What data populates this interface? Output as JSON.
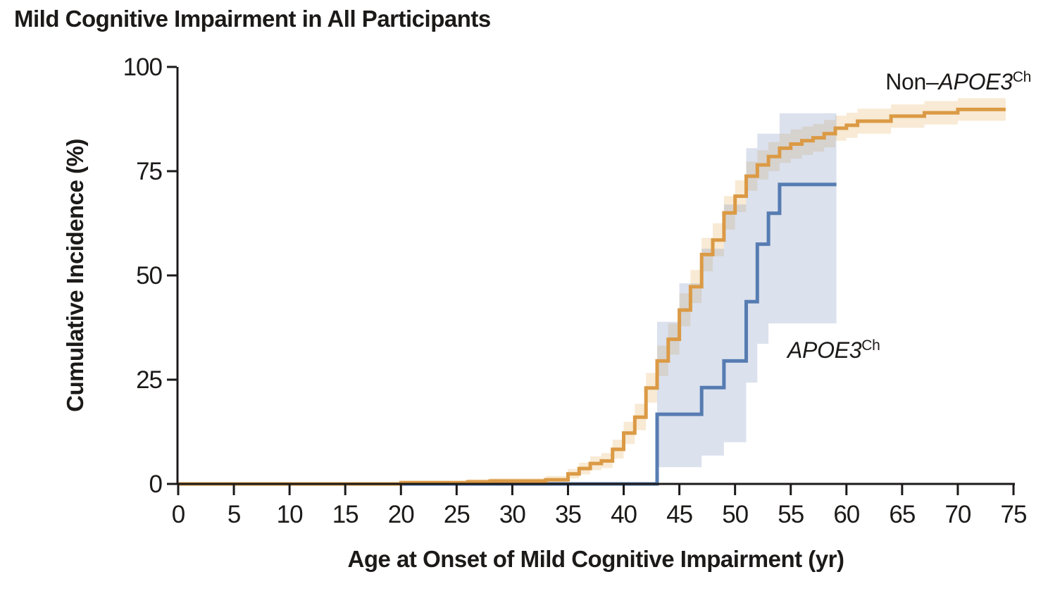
{
  "chart_data": {
    "type": "line",
    "variant": "cumulative-incidence-step-curves-with-confidence-bands",
    "title": "Mild Cognitive Impairment in All Participants",
    "xlabel": "Age at Onset of Mild Cognitive Impairment (yr)",
    "ylabel": "Cumulative Incidence (%)",
    "xlim": [
      0,
      75
    ],
    "ylim": [
      0,
      100
    ],
    "x_ticks": [
      0,
      5,
      10,
      15,
      20,
      25,
      30,
      35,
      40,
      45,
      50,
      55,
      60,
      65,
      70,
      75
    ],
    "y_ticks": [
      0,
      25,
      50,
      75,
      100
    ],
    "grid": false,
    "legend_position": "inline-annotations",
    "axis_color": "#1c1a19",
    "series": [
      {
        "key": "non-apoe3ch",
        "name": "Non–APOE3Ch",
        "label_parts": {
          "prefix": "Non–",
          "gene": "APOE3",
          "sup": "Ch"
        },
        "color": "#DB9A45",
        "band_color": "rgba(228,172,88,0.26)",
        "end_x": 74.3,
        "steps": [
          [
            0,
            0
          ],
          [
            20,
            0.3
          ],
          [
            26,
            0.5
          ],
          [
            28,
            0.7
          ],
          [
            33,
            1
          ],
          [
            35,
            2.4
          ],
          [
            36,
            3.7
          ],
          [
            37,
            4.9
          ],
          [
            38,
            5.5
          ],
          [
            39,
            8.3
          ],
          [
            40,
            12.2
          ],
          [
            41,
            16
          ],
          [
            42,
            23
          ],
          [
            43,
            29.5
          ],
          [
            44,
            34.7
          ],
          [
            45,
            41.7
          ],
          [
            46,
            47.3
          ],
          [
            47,
            55
          ],
          [
            48,
            58.5
          ],
          [
            49,
            65
          ],
          [
            50,
            69
          ],
          [
            51,
            73.8
          ],
          [
            52,
            76.5
          ],
          [
            53,
            78.5
          ],
          [
            54,
            80.5
          ],
          [
            55,
            81.5
          ],
          [
            56,
            82.3
          ],
          [
            57,
            83
          ],
          [
            58,
            84
          ],
          [
            59,
            85.3
          ],
          [
            60,
            86
          ],
          [
            61,
            87
          ],
          [
            64,
            88.2
          ],
          [
            67,
            89
          ],
          [
            70,
            89.8
          ]
        ],
        "band_upper": [
          [
            0,
            0
          ],
          [
            20,
            0.8
          ],
          [
            26,
            1.1
          ],
          [
            28,
            1.4
          ],
          [
            33,
            1.9
          ],
          [
            35,
            3.6
          ],
          [
            36,
            5.1
          ],
          [
            37,
            6.6
          ],
          [
            38,
            7.4
          ],
          [
            39,
            10.6
          ],
          [
            40,
            14.9
          ],
          [
            41,
            19.2
          ],
          [
            42,
            26.6
          ],
          [
            43,
            33.2
          ],
          [
            44,
            38.5
          ],
          [
            45,
            45.7
          ],
          [
            46,
            51.3
          ],
          [
            47,
            59
          ],
          [
            48,
            62.5
          ],
          [
            49,
            69
          ],
          [
            50,
            72.8
          ],
          [
            51,
            77.3
          ],
          [
            52,
            80
          ],
          [
            53,
            82
          ],
          [
            54,
            84
          ],
          [
            55,
            85
          ],
          [
            56,
            85.7
          ],
          [
            57,
            86.3
          ],
          [
            58,
            87.3
          ],
          [
            59,
            88.3
          ],
          [
            60,
            89
          ],
          [
            61,
            90
          ],
          [
            64,
            91
          ],
          [
            67,
            91.8
          ],
          [
            70,
            92.5
          ]
        ],
        "band_lower": [
          [
            0,
            0
          ],
          [
            20,
            0
          ],
          [
            26,
            0.1
          ],
          [
            28,
            0.2
          ],
          [
            33,
            0.4
          ],
          [
            35,
            1.3
          ],
          [
            36,
            2.3
          ],
          [
            37,
            3.3
          ],
          [
            38,
            3.8
          ],
          [
            39,
            6.1
          ],
          [
            40,
            9.6
          ],
          [
            41,
            12.9
          ],
          [
            42,
            19.5
          ],
          [
            43,
            25.9
          ],
          [
            44,
            31
          ],
          [
            45,
            37.8
          ],
          [
            46,
            43.4
          ],
          [
            47,
            51
          ],
          [
            48,
            54.6
          ],
          [
            49,
            61
          ],
          [
            50,
            65.2
          ],
          [
            51,
            70.3
          ],
          [
            52,
            73
          ],
          [
            53,
            75
          ],
          [
            54,
            77
          ],
          [
            55,
            78
          ],
          [
            56,
            78.9
          ],
          [
            57,
            79.7
          ],
          [
            58,
            80.7
          ],
          [
            59,
            82.3
          ],
          [
            60,
            83
          ],
          [
            61,
            84
          ],
          [
            64,
            85.4
          ],
          [
            67,
            86.2
          ],
          [
            70,
            87.1
          ]
        ]
      },
      {
        "key": "apoe3ch",
        "name": "APOE3Ch",
        "label_parts": {
          "prefix": "",
          "gene": "APOE3",
          "sup": "Ch"
        },
        "color": "#567CB2",
        "band_color": "rgba(125,148,190,0.28)",
        "end_x": 59.1,
        "steps": [
          [
            0,
            0
          ],
          [
            43,
            16.7
          ],
          [
            47,
            23.1
          ],
          [
            49,
            29.5
          ],
          [
            51,
            43.7
          ],
          [
            52,
            57.5
          ],
          [
            53,
            64.9
          ],
          [
            54,
            71.8
          ]
        ],
        "band_upper": [
          [
            43,
            38.9
          ],
          [
            45,
            48.1
          ],
          [
            47,
            56.4
          ],
          [
            49,
            67
          ],
          [
            51,
            80.5
          ],
          [
            52,
            84
          ],
          [
            54,
            88.9
          ]
        ],
        "band_lower": [
          [
            43,
            4
          ],
          [
            47,
            6.8
          ],
          [
            49,
            10
          ],
          [
            51,
            24.3
          ],
          [
            52,
            33.6
          ],
          [
            53,
            38.5
          ]
        ]
      }
    ]
  }
}
